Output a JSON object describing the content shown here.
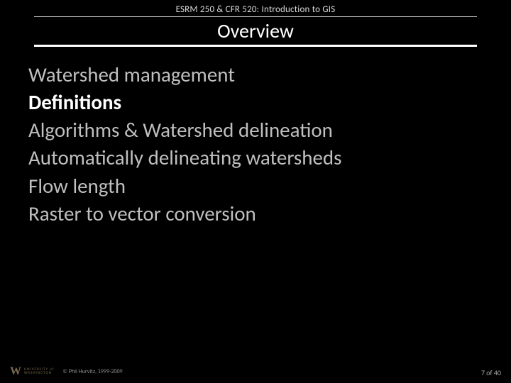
{
  "header": {
    "course": "ESRM 250 & CFR 520: Introduction to GIS"
  },
  "slide": {
    "title": "Overview",
    "title_color": "#ffffff",
    "rule_color": "#ffffff",
    "background": "#000000"
  },
  "topics": [
    {
      "label": "Watershed management",
      "active": false
    },
    {
      "label": "Definitions",
      "active": true
    },
    {
      "label": "Algorithms & Watershed delineation",
      "active": false
    },
    {
      "label": "Automatically delineating watersheds",
      "active": false
    },
    {
      "label": "Flow length",
      "active": false
    },
    {
      "label": "Raster to vector conversion",
      "active": false
    }
  ],
  "footer": {
    "logo_w": "W",
    "logo_line1": "UNIVERSITY of",
    "logo_line2": "WASHINGTON",
    "copyright": "© Phil Hurvitz, 1999-2009",
    "page": "7 of 40"
  },
  "style": {
    "topic_color": "#bfbfbf",
    "topic_active_color": "#ffffff",
    "topic_fontsize": 29,
    "title_fontsize": 28,
    "header_fontsize": 13
  }
}
